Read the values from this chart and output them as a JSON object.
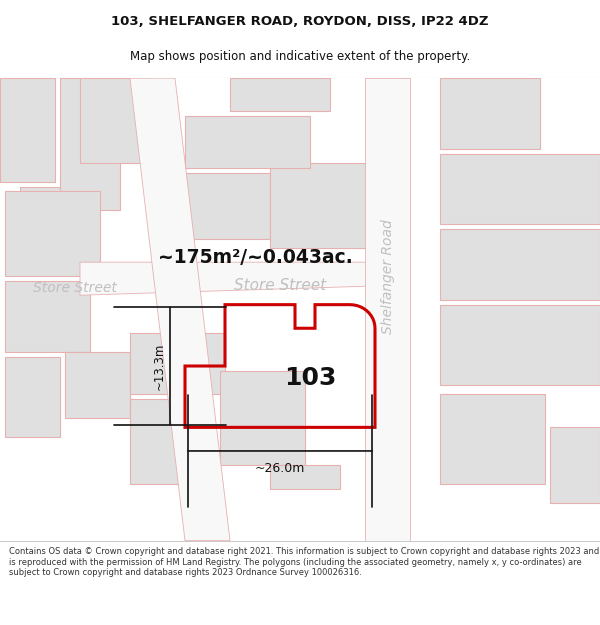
{
  "title_line1": "103, SHELFANGER ROAD, ROYDON, DISS, IP22 4DZ",
  "title_line2": "Map shows position and indicative extent of the property.",
  "footer_text": "Contains OS data © Crown copyright and database right 2021. This information is subject to Crown copyright and database rights 2023 and is reproduced with the permission of HM Land Registry. The polygons (including the associated geometry, namely x, y co-ordinates) are subject to Crown copyright and database rights 2023 Ordnance Survey 100026316.",
  "area_text": "~175m²/~0.043ac.",
  "label_103": "103",
  "street_store_center": "Store Street",
  "street_store_left": "Store Street",
  "street_shelfanger": "Shelfanger Road",
  "dim_width": "~26.0m",
  "dim_height": "~13.3m",
  "bg_color": "#ffffff",
  "map_bg": "#ffffff",
  "building_fill": "#e0e0e0",
  "building_stroke": "#e8b0b0",
  "highlight_stroke": "#cc0000",
  "highlight_fill": "#ffffff",
  "dim_color": "#111111",
  "street_color": "#c0c0c0",
  "area_color": "#111111",
  "footer_color": "#333333",
  "title_color": "#111111"
}
